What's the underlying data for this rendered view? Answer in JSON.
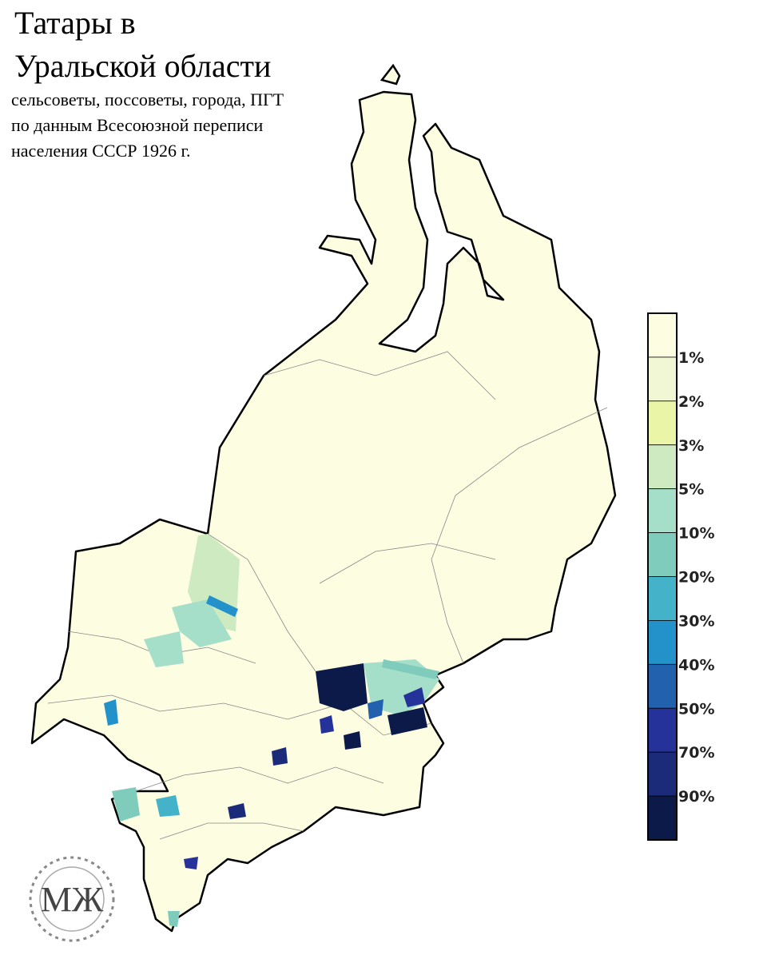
{
  "header": {
    "title_lines": [
      "Татары в",
      "Уральской области"
    ],
    "subtitle_lines": [
      "сельсоветы, поссоветы, города, ПГТ",
      "по данным Всесоюзной переписи",
      "населения СССР 1926 г."
    ]
  },
  "legend": {
    "colors": [
      "#fdfde2",
      "#f1f7d4",
      "#eaf5a8",
      "#cdeac0",
      "#a6dfc9",
      "#7fcbbc",
      "#44b3c9",
      "#2392cb",
      "#2261ae",
      "#25329a",
      "#1c2a7a",
      "#0b1a48"
    ],
    "labels": [
      "1%",
      "2%",
      "3%",
      "5%",
      "10%",
      "20%",
      "30%",
      "40%",
      "50%",
      "70%",
      "90%"
    ]
  },
  "logo": {
    "text": "МЖ"
  }
}
